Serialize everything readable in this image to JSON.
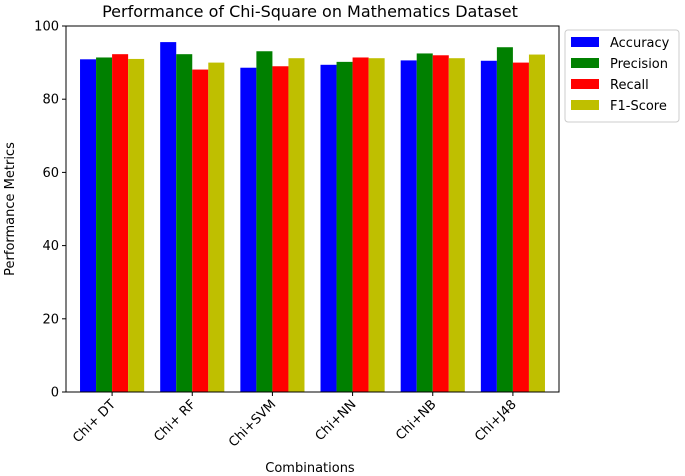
{
  "chart_data": {
    "type": "bar",
    "title": "Performance of Chi-Square on Mathematics Dataset",
    "xlabel": "Combinations",
    "ylabel": "Performance Metrics",
    "categories": [
      "Chi+ DT",
      "Chi+ RF",
      "Chi+SVM",
      "Chi+NN",
      "Chi+NB",
      "Chi+J48"
    ],
    "ylim": [
      0,
      100
    ],
    "yticks": [
      0,
      20,
      40,
      60,
      80,
      100
    ],
    "grid": false,
    "legend_position": "outside-right-top",
    "series": [
      {
        "name": "Accuracy",
        "color": "#0000ff",
        "values": [
          90.9,
          95.6,
          88.6,
          89.4,
          90.6,
          90.5
        ]
      },
      {
        "name": "Precision",
        "color": "#008000",
        "values": [
          91.4,
          92.3,
          93.1,
          90.2,
          92.5,
          94.2
        ]
      },
      {
        "name": "Recall",
        "color": "#ff0000",
        "values": [
          92.3,
          88.1,
          89.0,
          91.4,
          92.0,
          90.0
        ]
      },
      {
        "name": "F1-Score",
        "color": "#bfbf00",
        "values": [
          91.0,
          90.0,
          91.2,
          91.2,
          91.2,
          92.2
        ]
      }
    ]
  }
}
